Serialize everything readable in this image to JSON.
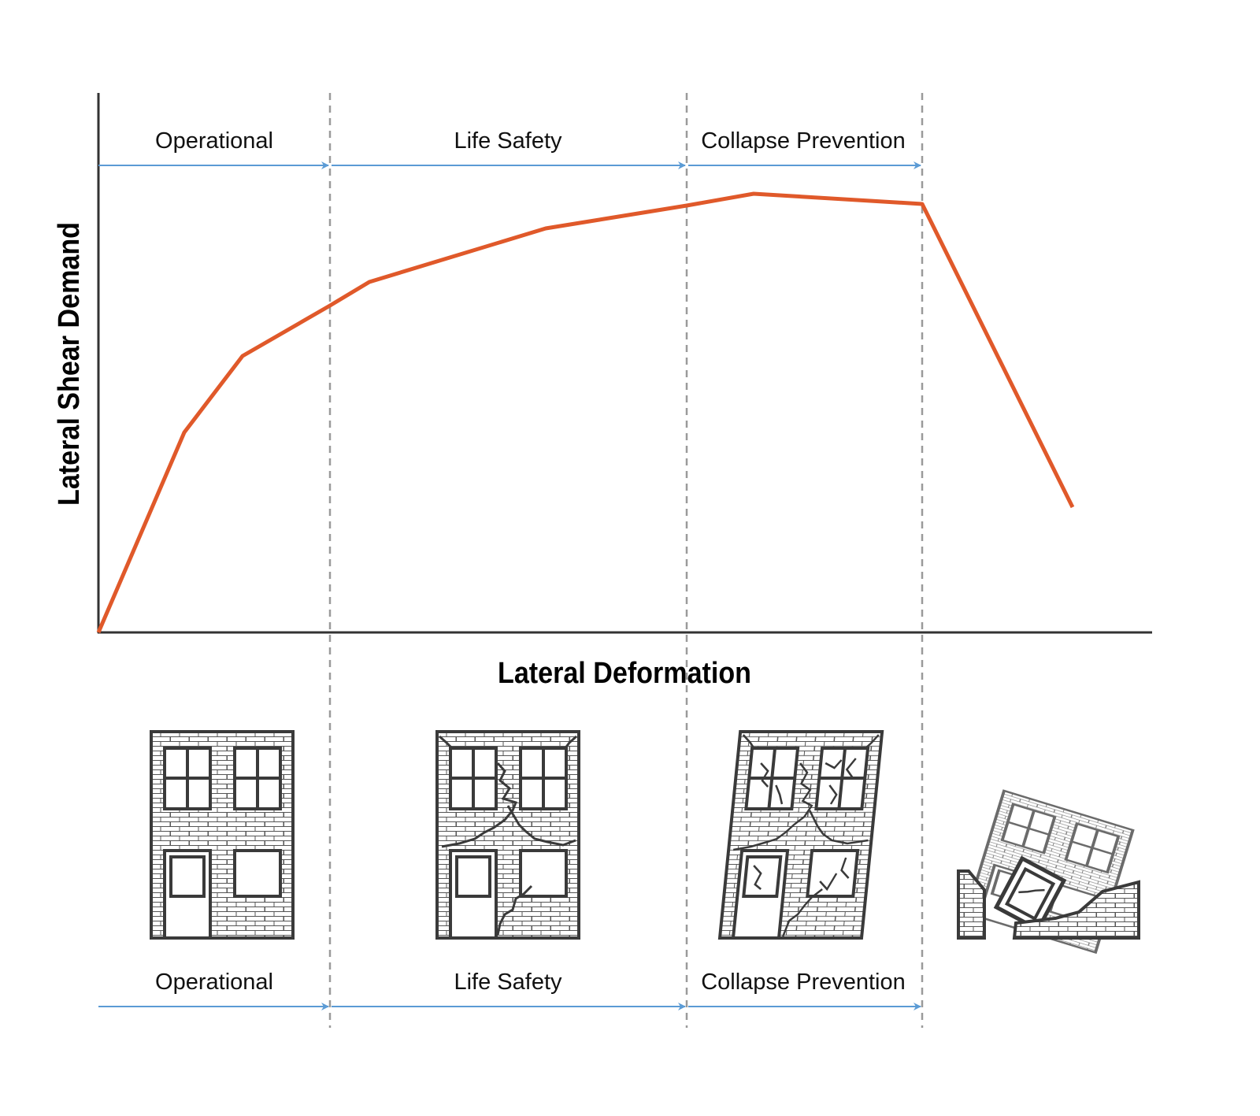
{
  "axes": {
    "x_title": "Lateral Deformation",
    "y_title": "Lateral Shear Demand"
  },
  "zones_top": [
    "Operational",
    "Life Safety",
    "Collapse Prevention"
  ],
  "zones_bottom": [
    "Operational",
    "Life Safety",
    "Collapse Prevention"
  ],
  "buildings": [
    "intact-building",
    "cracked-building",
    "severely-damaged-building",
    "collapsed-building"
  ],
  "colors": {
    "curve": "#e0592a",
    "arrow": "#5b9bd5",
    "divider": "#9a9a9a",
    "axis": "#333333",
    "building": "#3a3a3a"
  }
}
